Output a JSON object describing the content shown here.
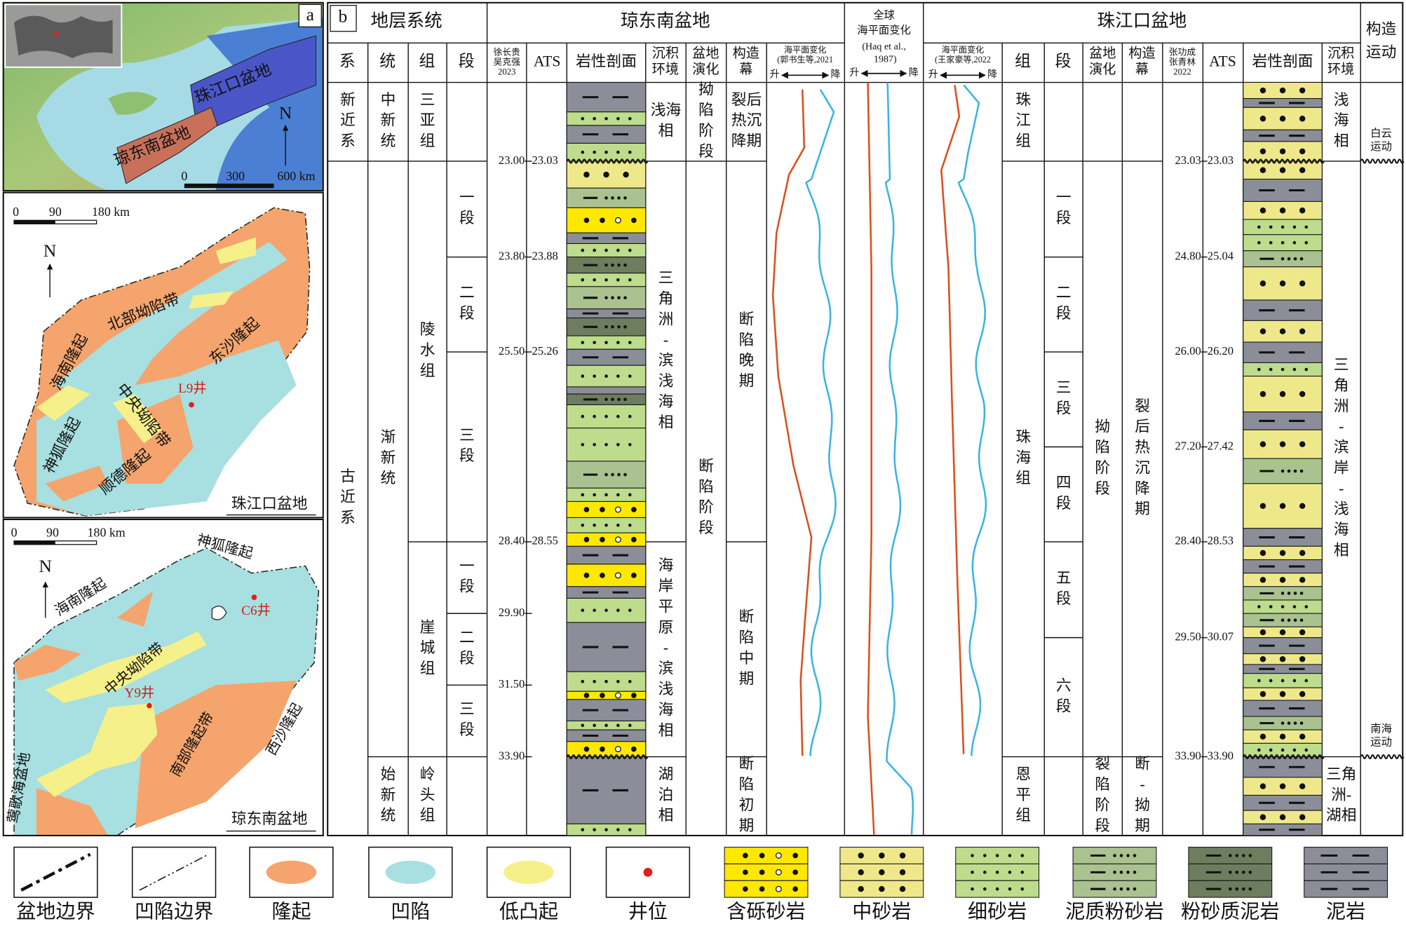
{
  "map_a": {
    "label": "a",
    "pearl_basin": "珠江口盆地",
    "qdn_basin": "琼东南盆地",
    "north": "N",
    "scale": [
      "0",
      "300",
      "600 km"
    ]
  },
  "map_pearl": {
    "scale": [
      "0",
      "90",
      "180 km"
    ],
    "north": "N",
    "labels": {
      "hainan": "海南隆起",
      "north_dep": "北部坳陷带",
      "dongsha": "东沙隆起",
      "central_dep": "中央坳陷带",
      "well": "L9井",
      "shenhu": "神狐隆起",
      "shunde": "顺德隆起"
    },
    "title": "珠江口盆地"
  },
  "map_qdn": {
    "scale": [
      "0",
      "90",
      "180 km"
    ],
    "north": "N",
    "labels": {
      "shenhu": "神狐隆起",
      "hainan": "海南隆起",
      "well_c6": "C6井",
      "central_dep": "中央坳陷带",
      "well_y9": "Y9井",
      "south": "南部隆起带",
      "xisha": "西沙隆起",
      "yinggehai": "莺歌海盆地"
    },
    "title": "琼东南盆地"
  },
  "column": {
    "label": "b",
    "header": {
      "strat": "地层系统",
      "qdn": "琼东南盆地",
      "global_1": "全球",
      "global_2": "海平面变化",
      "global_ref": "(Haq et al., 1987)",
      "prmb": "珠江口盆地",
      "tectonic": "构造运动"
    },
    "subheader": {
      "system": "系",
      "series": "统",
      "formation": "组",
      "member": "段",
      "qdn_age_src": "徐长贵吴克强2023",
      "qdn_ats": "ATS",
      "qdn_lith": "岩性剖面",
      "qdn_facies": "沉积环境",
      "qdn_evolution": "盆地演化",
      "qdn_episode": "构造幕",
      "qdn_sl": "海平面变化(郭书生等,2021)",
      "prmb_sl": "海平面变化(王家豪等,2022)",
      "prmb_formation": "组",
      "prmb_member": "段",
      "prmb_evolution": "盆地演化",
      "prmb_episode": "构造幕",
      "prmb_age_src": "张功成张青林2022",
      "prmb_ats": "ATS",
      "prmb_lith": "岩性剖面",
      "prmb_facies": "沉积环境"
    },
    "sl_arrows": [
      [
        "升",
        "降"
      ],
      [
        "升",
        "降"
      ],
      [
        "升",
        "降"
      ]
    ],
    "system": [
      "新近系",
      "古近系"
    ],
    "series": [
      "中新统",
      "渐新统",
      "始新统"
    ],
    "formation": [
      "三亚组",
      "陵水组",
      "崖城组",
      "岭头组"
    ],
    "member": [
      "一段",
      "二段",
      "三段",
      "一段",
      "二段",
      "三段"
    ],
    "qdn_ages": [
      "23.00",
      "23.80",
      "25.50",
      "28.40",
      "29.90",
      "31.50",
      "33.90"
    ],
    "qdn_ats": [
      "23.03",
      "23.88",
      "25.26",
      "28.55"
    ],
    "qdn_facies": [
      "浅海相",
      "三角洲-滨浅海相",
      "海岸平原-滨浅海相",
      "湖泊相"
    ],
    "qdn_evolution": [
      "拗陷阶段",
      "断陷阶段"
    ],
    "qdn_episode": [
      "裂后热沉降期",
      "断陷晚期",
      "断陷中期",
      "断陷初期"
    ],
    "prmb_formation": [
      "珠江组",
      "珠海组",
      "恩平组"
    ],
    "prmb_member": [
      "一段",
      "二段",
      "三段",
      "四段",
      "五段",
      "六段"
    ],
    "prmb_evolution": [
      "拗陷阶段",
      "裂陷阶段"
    ],
    "prmb_episode": [
      "裂后热沉降期",
      "断-拗期"
    ],
    "prmb_ages": [
      "23.03",
      "24.80",
      "26.00",
      "27.20",
      "28.40",
      "29.50",
      "33.90"
    ],
    "prmb_ats": [
      "23.03",
      "25.04",
      "26.20",
      "27.42",
      "28.53",
      "30.07",
      "33.90"
    ],
    "prmb_facies": [
      "浅海相",
      "三角洲-滨岸-浅海相",
      "三角洲-湖相"
    ],
    "movements": [
      "白云运动",
      "南海运动"
    ]
  },
  "legend": [
    "盆地边界",
    "凹陷边界",
    "隆起",
    "凹陷",
    "低凸起",
    "井位",
    "含砾砂岩",
    "中砂岩",
    "细砂岩",
    "泥质粉砂岩",
    "粉砂质泥岩",
    "泥岩"
  ]
}
